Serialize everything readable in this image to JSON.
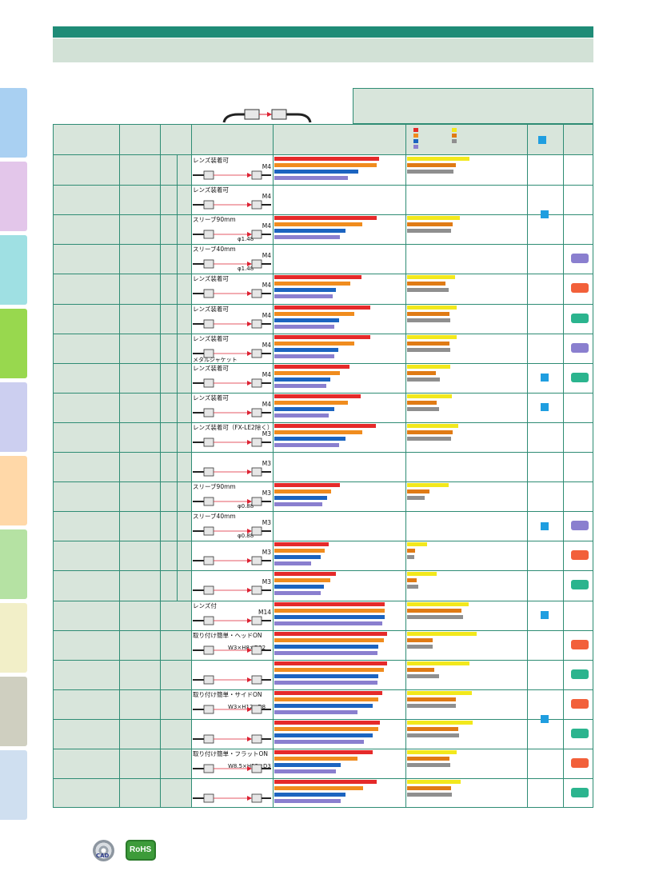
{
  "colors": {
    "header": "#1f8c77",
    "band": "#d2e1d6",
    "red": "#e52a2a",
    "orange": "#f08c1e",
    "blue": "#1c64c0",
    "purple": "#8a7fcf",
    "yellow": "#f2e81c",
    "amber": "#e07b15",
    "gray": "#8f8f8f",
    "cyan_square": "#1f9ee0",
    "badge_purple": "#8a7fcf",
    "badge_orange": "#f2603a",
    "badge_teal": "#2bb48e"
  },
  "side_tabs": [
    {
      "color": "#a9d0f2"
    },
    {
      "color": "#e3c6ea"
    },
    {
      "color": "#9fe0e3"
    },
    {
      "color": "#98d84e"
    },
    {
      "color": "#cccff0"
    },
    {
      "color": "#ffd8a8"
    },
    {
      "color": "#b5e2a3"
    },
    {
      "color": "#f2efc8"
    },
    {
      "color": "#cfcfc0"
    },
    {
      "color": "#cfdff0"
    }
  ],
  "rows": [
    {
      "label": "レンズ装着可",
      "thread": "M4",
      "left": [
        131,
        128,
        105,
        92
      ],
      "right": [
        78,
        61,
        58
      ],
      "badge": null
    },
    {
      "label": "レンズ装着可",
      "thread": "M4",
      "left": null,
      "right": null,
      "badge": null
    },
    {
      "label": "スリーブ90mm",
      "thread": "M4",
      "dim": "φ1.48",
      "left": [
        128,
        110,
        89,
        82
      ],
      "right": [
        66,
        57,
        55
      ],
      "badge": null
    },
    {
      "label": "スリーブ40mm",
      "thread": "M4",
      "dim": "φ1.48",
      "left": null,
      "right": null,
      "badge": "purple"
    },
    {
      "label": "レンズ装着可",
      "thread": "M4",
      "left": [
        109,
        95,
        77,
        73
      ],
      "right": [
        60,
        48,
        52
      ],
      "badge": "orange"
    },
    {
      "label": "レンズ装着可",
      "thread": "M4",
      "left": [
        120,
        100,
        81,
        75
      ],
      "right": [
        62,
        53,
        54
      ],
      "badge": "teal"
    },
    {
      "label": "レンズ装着可",
      "thread": "M4",
      "extra": "メタルジャケット",
      "left": [
        120,
        100,
        80,
        75
      ],
      "right": [
        62,
        53,
        54
      ],
      "badge": "purple"
    },
    {
      "label": "レンズ装着可",
      "thread": "M4",
      "left": [
        94,
        82,
        70,
        65
      ],
      "right": [
        54,
        36,
        41
      ],
      "badge": "teal"
    },
    {
      "label": "レンズ装着可",
      "thread": "M4",
      "left": [
        108,
        92,
        75,
        68
      ],
      "right": [
        56,
        37,
        40
      ],
      "badge": null
    },
    {
      "label": "レンズ装着可（FX-LE2除く）",
      "thread": "M3",
      "left": [
        127,
        110,
        89,
        81
      ],
      "right": [
        64,
        57,
        55
      ],
      "badge": null
    },
    {
      "label": "",
      "thread": "M3",
      "left": null,
      "right": null,
      "badge": null
    },
    {
      "label": "スリーブ90mm",
      "thread": "M3",
      "dim": "φ0.88",
      "left": [
        82,
        71,
        66,
        60
      ],
      "right": [
        52,
        28,
        22
      ],
      "badge": null
    },
    {
      "label": "スリーブ40mm",
      "thread": "M3",
      "dim": "φ0.88",
      "left": null,
      "right": null,
      "badge": "purple"
    },
    {
      "label": "",
      "thread": "M3",
      "left": [
        68,
        63,
        58,
        46
      ],
      "right": [
        25,
        10,
        9
      ],
      "badge": "orange"
    },
    {
      "label": "",
      "thread": "M3",
      "left": [
        77,
        70,
        62,
        58
      ],
      "right": [
        37,
        12,
        14
      ],
      "badge": "teal"
    },
    {
      "label": "レンズ付",
      "thread": "M14",
      "left": [
        138,
        138,
        138,
        135
      ],
      "right": [
        77,
        68,
        70
      ],
      "badge": null
    },
    {
      "label": "取り付け簡単・ヘッドON",
      "thread": "",
      "dim": "W3×H8×D12",
      "left": [
        141,
        137,
        130,
        129
      ],
      "right": [
        87,
        32,
        32
      ],
      "badge": "orange"
    },
    {
      "label": "",
      "thread": "",
      "left": [
        141,
        137,
        130,
        129
      ],
      "right": [
        78,
        34,
        40
      ],
      "badge": "teal"
    },
    {
      "label": "取り付け簡単・サイドON",
      "thread": "",
      "dim": "W3×H12×D8",
      "left": [
        135,
        130,
        123,
        104
      ],
      "right": [
        81,
        61,
        61
      ],
      "badge": "orange"
    },
    {
      "label": "",
      "thread": "",
      "left": [
        132,
        130,
        123,
        112
      ],
      "right": [
        82,
        64,
        65
      ],
      "badge": "teal"
    },
    {
      "label": "取り付け簡単・フラットON",
      "thread": "",
      "dim": "W8.5×H12×D3",
      "left": [
        123,
        104,
        83,
        77
      ],
      "right": [
        62,
        53,
        54
      ],
      "badge": "orange"
    },
    {
      "label": "",
      "thread": "",
      "left": [
        128,
        111,
        89,
        83
      ],
      "right": [
        67,
        55,
        56
      ],
      "badge": "teal"
    }
  ],
  "footer": {
    "cad_label": "CAD",
    "rohs_label": "RoHS"
  }
}
